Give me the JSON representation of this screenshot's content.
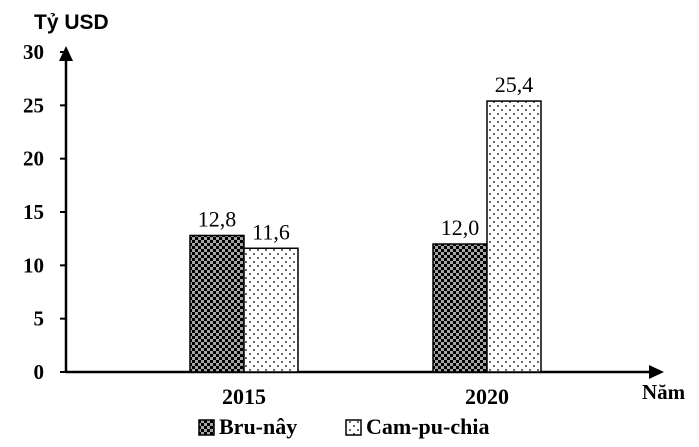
{
  "chart_data": {
    "type": "bar",
    "ylabel": "Tỷ USD",
    "xlabel": "Năm",
    "categories": [
      "2015",
      "2020"
    ],
    "ylim": [
      0,
      30
    ],
    "yticks": [
      0,
      5,
      10,
      15,
      20,
      25,
      30
    ],
    "series": [
      {
        "name": "Bru-nây",
        "values": [
          12.8,
          12.0
        ],
        "value_labels": [
          "12,8",
          "12,0"
        ],
        "pattern": "checkered-dark"
      },
      {
        "name": "Cam-pu-chia",
        "values": [
          11.6,
          25.4
        ],
        "value_labels": [
          "11,6",
          "25,4"
        ],
        "pattern": "dotted-light"
      }
    ],
    "grid": false,
    "legend_position": "bottom",
    "colors": {
      "axis": "#000000",
      "dark_fill": "#000000",
      "light_fill": "#ffffff"
    }
  }
}
